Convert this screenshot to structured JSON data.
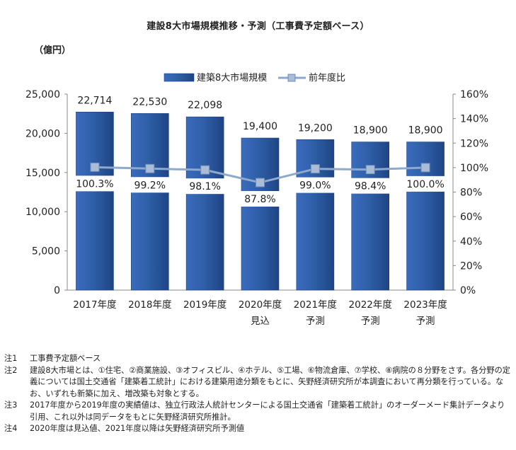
{
  "chart_data": {
    "type": "bar",
    "title": "建設8大市場規模推移・予測（工事費予定額ベース）",
    "unit_label": "（億円）",
    "categories": [
      {
        "year": "2017年度",
        "sub": ""
      },
      {
        "year": "2018年度",
        "sub": ""
      },
      {
        "year": "2019年度",
        "sub": ""
      },
      {
        "year": "2020年度",
        "sub": "見込"
      },
      {
        "year": "2021年度",
        "sub": "予測"
      },
      {
        "year": "2022年度",
        "sub": "予測"
      },
      {
        "year": "2023年度",
        "sub": "予測"
      }
    ],
    "series": [
      {
        "name": "建築8大市場規模",
        "kind": "bar",
        "axis": "left",
        "values": [
          22714,
          22530,
          22098,
          19400,
          19200,
          18900,
          18900
        ],
        "labels": [
          "22,714",
          "22,530",
          "22,098",
          "19,400",
          "19,200",
          "18,900",
          "18,900"
        ],
        "color": "#2f5fa8"
      },
      {
        "name": "前年度比",
        "kind": "line",
        "axis": "right",
        "values": [
          100.3,
          99.2,
          98.1,
          87.8,
          99.0,
          98.4,
          100.0
        ],
        "labels": [
          "100.3%",
          "99.2%",
          "98.1%",
          "87.8%",
          "99.0%",
          "98.4%",
          "100.0%"
        ],
        "color": "#8fa9cc"
      }
    ],
    "y_left": {
      "min": 0,
      "max": 25000,
      "ticks": [
        "0",
        "5,000",
        "10,000",
        "15,000",
        "20,000",
        "25,000"
      ]
    },
    "y_right": {
      "min": 0,
      "max": 160,
      "ticks": [
        "0%",
        "20%",
        "40%",
        "60%",
        "80%",
        "100%",
        "120%",
        "140%",
        "160%"
      ]
    },
    "legend_position": "top-center",
    "grid": false
  },
  "notes": [
    {
      "label": "注1",
      "text": "工事費予定額ベース"
    },
    {
      "label": "注2",
      "text": "建設8大市場とは、①住宅、②商業施設、③オフィスビル、④ホテル、⑤工場、⑥物流倉庫、⑦学校、⑧病院の８分野をさす。各分野の定義については国土交通省「建築着工統計」における建築用途分類をもとに、矢野経済研究所が本調査において再分類を行っている。なお、いずれも新築に加え、増改築も対象とする。"
    },
    {
      "label": "注3",
      "text": "2017年度から2019年度の実績値は、独立行政法人統計センターによる国土交通省「建築着工統計」のオーダーメード集計データより引用、これ以外は同データをもとに矢野経済研究所推計。"
    },
    {
      "label": "注4",
      "text": "2020年度は見込値、2021年度以降は矢野経済研究所予測値"
    }
  ]
}
